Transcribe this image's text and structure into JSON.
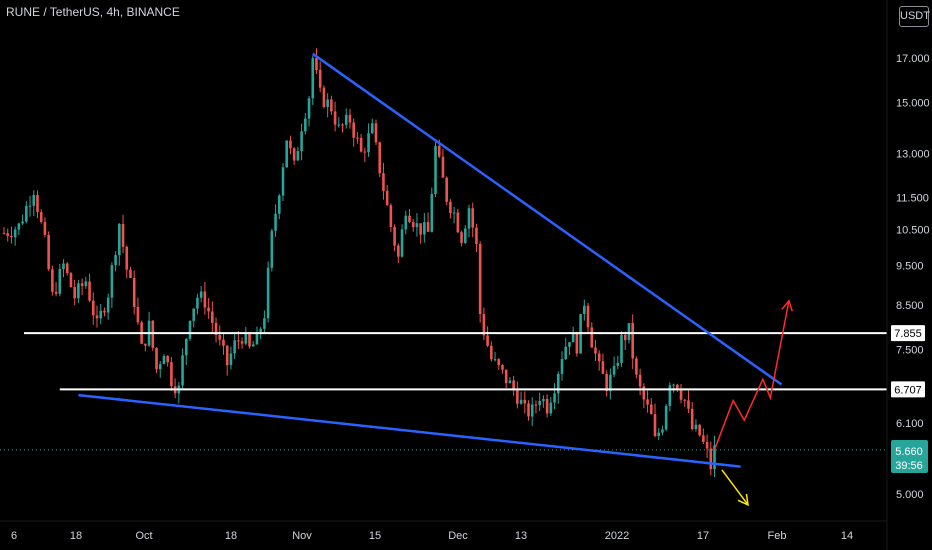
{
  "header": {
    "title": "RUNE / TetherUS, 4h, BINANCE",
    "currency": "USDT"
  },
  "price_badge": {
    "price": "5.660",
    "countdown": "39:56",
    "color": "#26a69a"
  },
  "colors": {
    "background": "#000000",
    "up_candle": "#26a69a",
    "down_candle": "#ef5350",
    "trendline": "#2a62ff",
    "support_line": "#ffffff",
    "projection_up": "#ff2a2a",
    "projection_down": "#ffe600",
    "axis_text": "#d1d4dc"
  },
  "chart_data": {
    "type": "candlestick",
    "title": "RUNE / TetherUS, 4h, BINANCE",
    "y_scale": "log",
    "ylim": [
      4.7,
      19.5
    ],
    "y_ticks": [
      "17.000",
      "15.000",
      "13.000",
      "11.500",
      "10.500",
      "9.500",
      "8.500",
      "7.500",
      "6.100",
      "5.000"
    ],
    "x_ticks": [
      "6",
      "18",
      "Oct",
      "18",
      "Nov",
      "15",
      "Dec",
      "13",
      "2022",
      "17",
      "Feb",
      "14"
    ],
    "price_path": [
      [
        0,
        10.4
      ],
      [
        4,
        10.6
      ],
      [
        8,
        11.8
      ],
      [
        11,
        10.1
      ],
      [
        13,
        8.7
      ],
      [
        16,
        9.5
      ],
      [
        19,
        8.7
      ],
      [
        22,
        9.1
      ],
      [
        25,
        8.0
      ],
      [
        28,
        8.8
      ],
      [
        31,
        10.7
      ],
      [
        33,
        9.4
      ],
      [
        35,
        8.6
      ],
      [
        37,
        7.5
      ],
      [
        39,
        8.0
      ],
      [
        41,
        7.1
      ],
      [
        43,
        7.5
      ],
      [
        45,
        6.9
      ],
      [
        47,
        6.7
      ],
      [
        48,
        7.3
      ],
      [
        50,
        8.3
      ],
      [
        52,
        8.7
      ],
      [
        54,
        8.6
      ],
      [
        56,
        8.1
      ],
      [
        58,
        7.6
      ],
      [
        60,
        7.2
      ],
      [
        62,
        7.6
      ],
      [
        64,
        7.8
      ],
      [
        66,
        7.5
      ],
      [
        68,
        7.7
      ],
      [
        70,
        8.3
      ],
      [
        72,
        10.3
      ],
      [
        74,
        11.8
      ],
      [
        76,
        13.6
      ],
      [
        78,
        12.5
      ],
      [
        80,
        14.1
      ],
      [
        82,
        15.3
      ],
      [
        83,
        17.0
      ],
      [
        85,
        15.3
      ],
      [
        88,
        14.8
      ],
      [
        90,
        13.9
      ],
      [
        93,
        14.3
      ],
      [
        96,
        13.0
      ],
      [
        99,
        13.9
      ],
      [
        102,
        11.8
      ],
      [
        104,
        10.6
      ],
      [
        106,
        9.7
      ],
      [
        108,
        11.2
      ],
      [
        111,
        10.6
      ],
      [
        114,
        10.4
      ],
      [
        116,
        13.2
      ],
      [
        119,
        11.5
      ],
      [
        121,
        11.0
      ],
      [
        123,
        10.3
      ],
      [
        125,
        11.2
      ],
      [
        127,
        10.0
      ],
      [
        128,
        8.3
      ],
      [
        129,
        7.9
      ],
      [
        131,
        7.3
      ],
      [
        133,
        7.1
      ],
      [
        136,
        6.8
      ],
      [
        138,
        6.6
      ],
      [
        140,
        6.3
      ],
      [
        142,
        6.3
      ],
      [
        144,
        6.6
      ],
      [
        146,
        6.4
      ],
      [
        148,
        6.8
      ],
      [
        150,
        7.4
      ],
      [
        152,
        7.8
      ],
      [
        154,
        7.6
      ],
      [
        156,
        8.6
      ],
      [
        158,
        7.7
      ],
      [
        160,
        7.1
      ],
      [
        162,
        6.8
      ],
      [
        164,
        7.0
      ],
      [
        166,
        7.7
      ],
      [
        168,
        7.9
      ],
      [
        170,
        6.9
      ],
      [
        172,
        6.5
      ],
      [
        174,
        6.2
      ],
      [
        175,
        5.8
      ],
      [
        177,
        6.1
      ],
      [
        179,
        6.9
      ],
      [
        181,
        6.8
      ],
      [
        183,
        6.5
      ],
      [
        185,
        6.0
      ],
      [
        187,
        5.9
      ],
      [
        189,
        5.6
      ],
      [
        190,
        5.4
      ],
      [
        191,
        5.66
      ]
    ],
    "horizontal_levels": [
      7.855,
      6.707
    ],
    "annotations": {
      "upper_trendline": {
        "from": [
          83,
          17.2
        ],
        "to": [
          209,
          6.8
        ]
      },
      "lower_trendline": {
        "from": [
          20,
          6.6
        ],
        "to": [
          198,
          5.4
        ]
      },
      "projection_up": [
        [
          191,
          5.66
        ],
        [
          196,
          6.5
        ],
        [
          199,
          6.15
        ],
        [
          204,
          6.9
        ],
        [
          206,
          6.55
        ],
        [
          211,
          8.6
        ]
      ],
      "projection_down": [
        [
          193,
          5.35
        ],
        [
          200,
          4.85
        ]
      ]
    }
  }
}
